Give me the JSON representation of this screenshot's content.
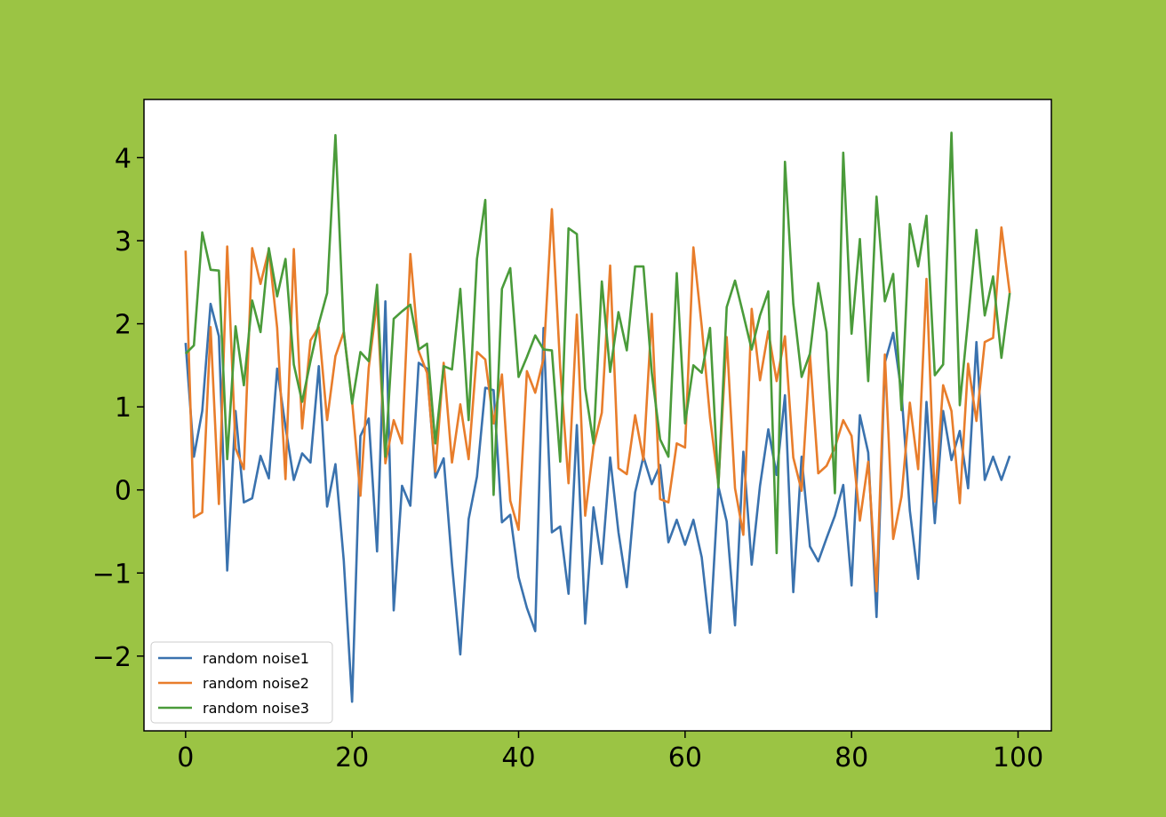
{
  "figure": {
    "background_color": "#9bc444"
  },
  "chart_data": {
    "type": "line",
    "title": "",
    "xlabel": "",
    "ylabel": "",
    "xlim": [
      -5,
      104
    ],
    "ylim": [
      -2.9,
      4.7
    ],
    "grid": false,
    "legend_placement": "lower-left",
    "x_ticks": [
      0,
      20,
      40,
      60,
      80,
      100
    ],
    "x_tick_labels": [
      "0",
      "20",
      "40",
      "60",
      "80",
      "100"
    ],
    "y_ticks": [
      -2,
      -1,
      0,
      1,
      2,
      3,
      4
    ],
    "y_tick_labels": [
      "−2",
      "−1",
      "0",
      "1",
      "2",
      "3",
      "4"
    ],
    "x": [
      0,
      1,
      2,
      3,
      4,
      5,
      6,
      7,
      8,
      9,
      10,
      11,
      12,
      13,
      14,
      15,
      16,
      17,
      18,
      19,
      20,
      21,
      22,
      23,
      24,
      25,
      26,
      27,
      28,
      29,
      30,
      31,
      32,
      33,
      34,
      35,
      36,
      37,
      38,
      39,
      40,
      41,
      42,
      43,
      44,
      45,
      46,
      47,
      48,
      49,
      50,
      51,
      52,
      53,
      54,
      55,
      56,
      57,
      58,
      59,
      60,
      61,
      62,
      63,
      64,
      65,
      66,
      67,
      68,
      69,
      70,
      71,
      72,
      73,
      74,
      75,
      76,
      77,
      78,
      79,
      80,
      81,
      82,
      83,
      84,
      85,
      86,
      87,
      88,
      89,
      90,
      91,
      92,
      93,
      94,
      95,
      96,
      97,
      98,
      99
    ],
    "series": [
      {
        "name": "random noise1",
        "color": "#3a72ae",
        "values": [
          1.77,
          0.4,
          0.95,
          2.24,
          1.85,
          -0.97,
          0.95,
          -0.15,
          -0.1,
          0.41,
          0.14,
          1.46,
          0.76,
          0.12,
          0.44,
          0.33,
          1.49,
          -0.2,
          0.31,
          -0.85,
          -2.55,
          0.65,
          0.86,
          -0.74,
          2.27,
          -1.45,
          0.05,
          -0.19,
          1.53,
          1.46,
          0.15,
          0.38,
          -0.89,
          -1.98,
          -0.35,
          0.16,
          1.23,
          1.2,
          -0.39,
          -0.3,
          -1.05,
          -1.42,
          -1.7,
          1.95,
          -0.51,
          -0.44,
          -1.25,
          0.78,
          -1.61,
          -0.21,
          -0.89,
          0.39,
          -0.51,
          -1.17,
          -0.03,
          0.4,
          0.07,
          0.3,
          -0.63,
          -0.36,
          -0.66,
          -0.36,
          -0.81,
          -1.72,
          0.04,
          -0.38,
          -1.63,
          0.46,
          -0.9,
          0.05,
          0.73,
          0.18,
          1.14,
          -1.23,
          0.4,
          -0.68,
          -0.86,
          -0.58,
          -0.31,
          0.06,
          -1.15,
          0.9,
          0.45,
          -1.53,
          1.53,
          1.89,
          1.17,
          -0.25,
          -1.07,
          1.06,
          -0.4,
          0.95,
          0.36,
          0.71,
          0.02,
          1.78,
          0.12,
          0.4,
          0.12,
          0.41
        ]
      },
      {
        "name": "random noise2",
        "color": "#e87d2b",
        "values": [
          2.88,
          -0.33,
          -0.27,
          1.96,
          -0.17,
          2.93,
          0.5,
          0.25,
          2.91,
          2.48,
          2.89,
          1.95,
          0.13,
          2.9,
          0.74,
          1.8,
          1.96,
          0.84,
          1.61,
          1.9,
          1.07,
          -0.07,
          1.47,
          2.27,
          0.32,
          0.84,
          0.56,
          2.84,
          1.67,
          1.41,
          0.22,
          1.53,
          0.33,
          1.03,
          0.37,
          1.66,
          1.57,
          0.8,
          1.39,
          -0.13,
          -0.48,
          1.43,
          1.17,
          1.58,
          3.38,
          1.47,
          0.08,
          2.11,
          -0.31,
          0.52,
          0.93,
          2.7,
          0.26,
          0.19,
          0.9,
          0.36,
          2.12,
          -0.11,
          -0.15,
          0.56,
          0.51,
          2.92,
          1.97,
          0.87,
          0.07,
          1.84,
          0.02,
          -0.54,
          2.18,
          1.32,
          1.91,
          1.31,
          1.85,
          0.39,
          -0.01,
          1.63,
          0.2,
          0.29,
          0.51,
          0.84,
          0.65,
          -0.37,
          0.34,
          -1.22,
          1.63,
          -0.59,
          -0.08,
          1.05,
          0.25,
          2.54,
          -0.14,
          1.26,
          0.95,
          -0.16,
          1.52,
          0.83,
          1.78,
          1.83,
          3.16,
          2.37
        ]
      },
      {
        "name": "random noise3",
        "color": "#4a9b3a",
        "values": [
          1.64,
          1.74,
          3.1,
          2.65,
          2.64,
          0.37,
          1.97,
          1.26,
          2.28,
          1.9,
          2.91,
          2.33,
          2.78,
          1.51,
          1.06,
          1.55,
          2.0,
          2.37,
          4.27,
          1.91,
          1.04,
          1.66,
          1.55,
          2.47,
          0.4,
          2.06,
          2.15,
          2.23,
          1.69,
          1.76,
          0.56,
          1.49,
          1.45,
          2.42,
          0.84,
          2.78,
          3.49,
          -0.06,
          2.42,
          2.67,
          1.36,
          1.6,
          1.86,
          1.69,
          1.68,
          0.34,
          3.15,
          3.08,
          1.22,
          0.56,
          2.51,
          1.42,
          2.14,
          1.68,
          2.69,
          2.69,
          1.41,
          0.61,
          0.4,
          2.61,
          0.8,
          1.5,
          1.41,
          1.95,
          0.03,
          2.2,
          2.52,
          2.11,
          1.69,
          2.1,
          2.39,
          -0.76,
          3.95,
          2.24,
          1.36,
          1.64,
          2.49,
          1.9,
          -0.04,
          4.06,
          1.88,
          3.02,
          1.31,
          3.53,
          2.27,
          2.6,
          0.96,
          3.2,
          2.69,
          3.3,
          1.38,
          1.51,
          4.3,
          1.02,
          2.05,
          3.13,
          2.1,
          2.57,
          1.59,
          2.37
        ]
      }
    ]
  }
}
